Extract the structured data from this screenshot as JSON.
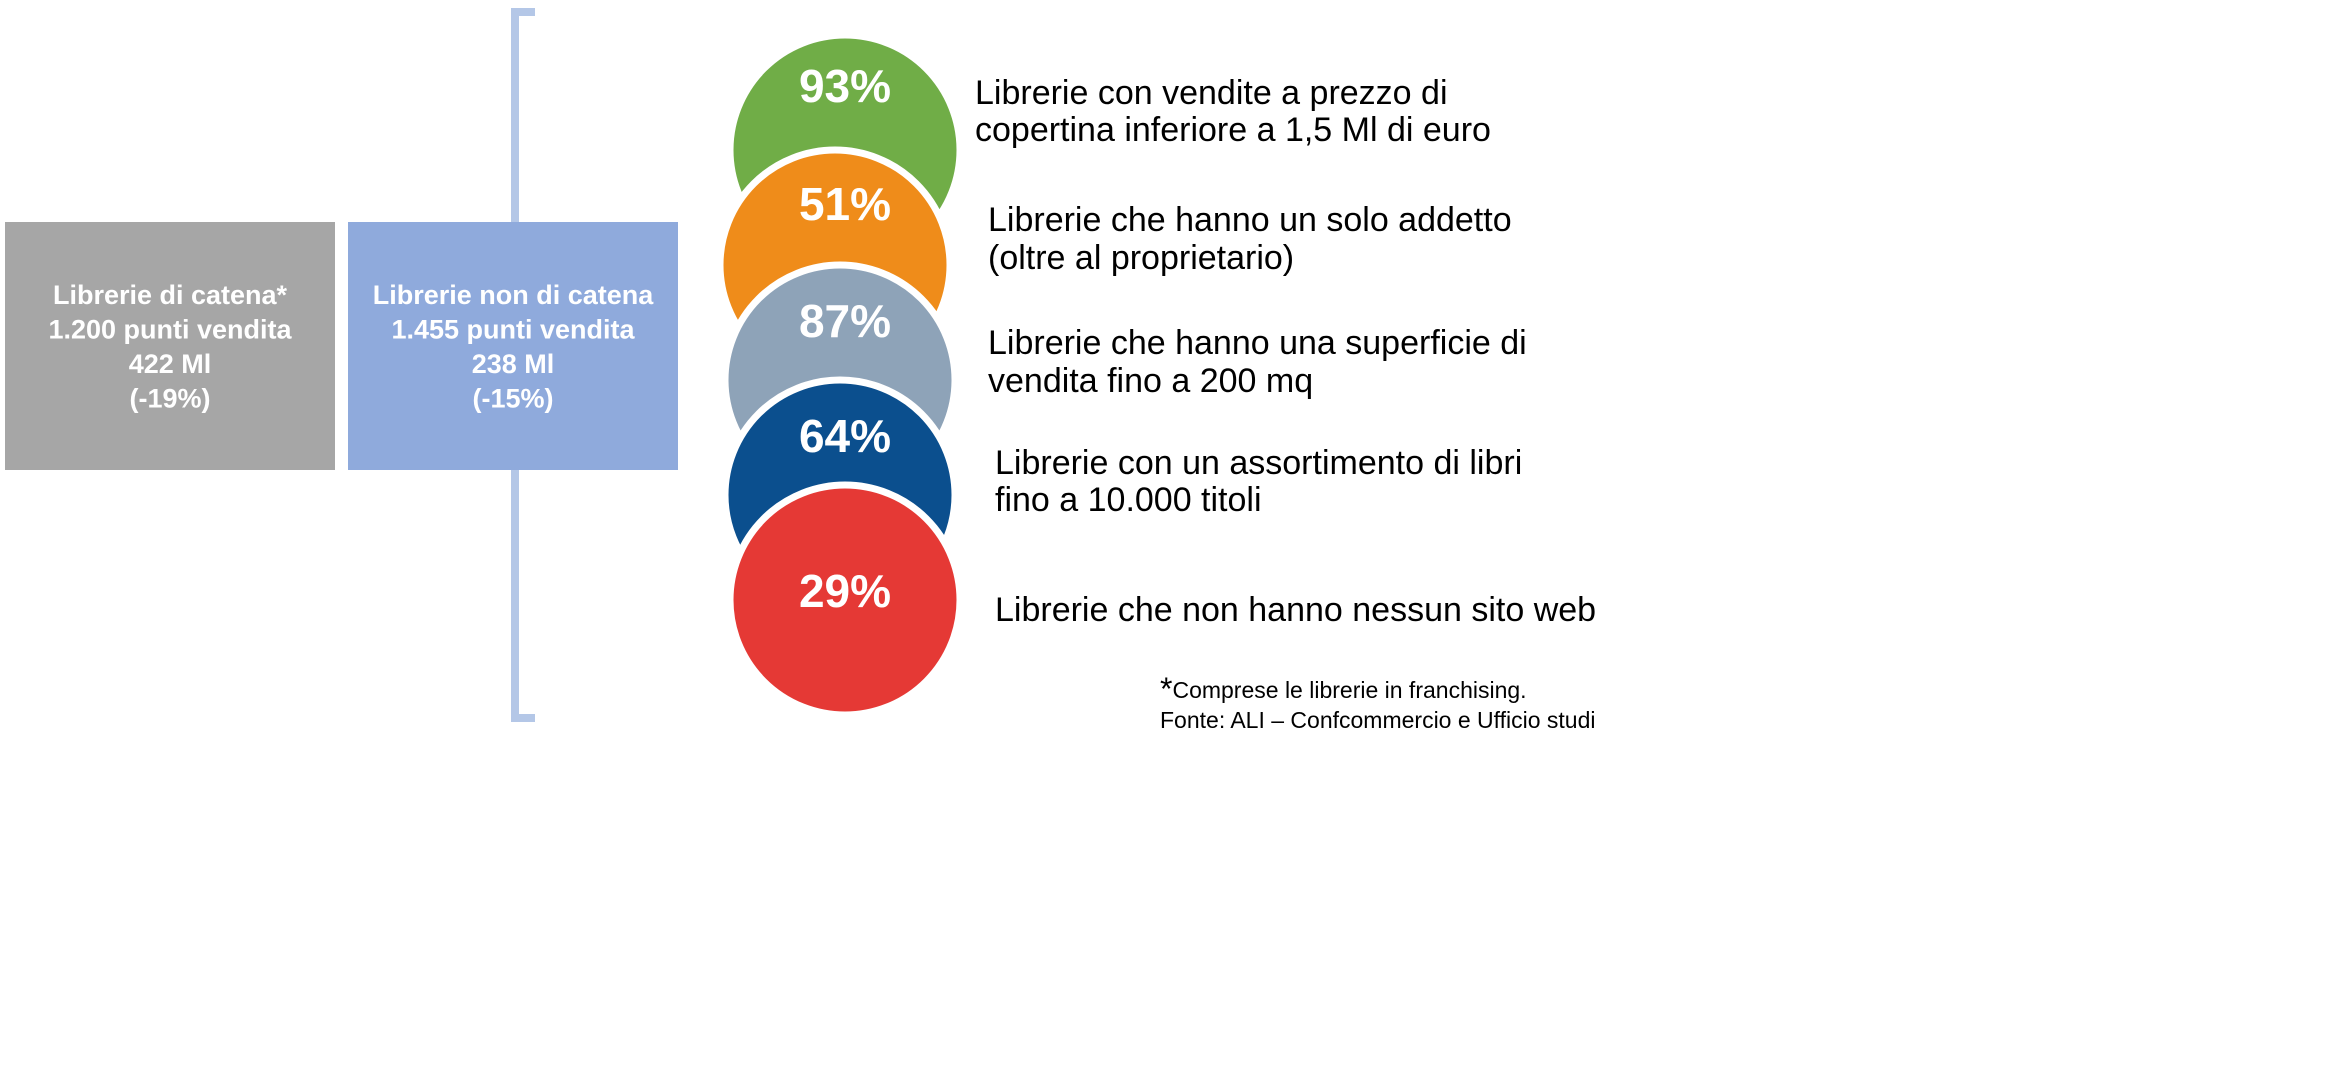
{
  "boxes": [
    {
      "lines": [
        "Librerie di catena*",
        "1.200 punti vendita",
        "422 Ml",
        "(-19%)"
      ]
    },
    {
      "lines": [
        "Librerie non di catena",
        "1.455 punti vendita",
        "238 Ml",
        "(-15%)"
      ]
    }
  ],
  "items": [
    {
      "percent": "93%",
      "color": "#70ad47",
      "lines": [
        "Librerie con vendite a prezzo di",
        "copertina inferiore a 1,5 Ml di euro"
      ]
    },
    {
      "percent": "51%",
      "color": "#ef8c1a",
      "lines": [
        "Librerie che hanno un solo addetto",
        "(oltre al proprietario)"
      ]
    },
    {
      "percent": "87%",
      "color": "#8ea3b8",
      "lines": [
        "Librerie che hanno una superficie di",
        "vendita fino a 200 mq"
      ]
    },
    {
      "percent": "64%",
      "color": "#0b4f8e",
      "lines": [
        "Librerie con un assortimento di libri",
        "fino a 10.000 titoli"
      ]
    },
    {
      "percent": "29%",
      "color": "#e53935",
      "lines": [
        "Librerie che non hanno nessun sito web"
      ]
    }
  ],
  "footnote": {
    "mark": "*",
    "text": "Comprese le librerie in franchising.",
    "source": "Fonte: ALI – Confcommercio e Ufficio studi"
  }
}
